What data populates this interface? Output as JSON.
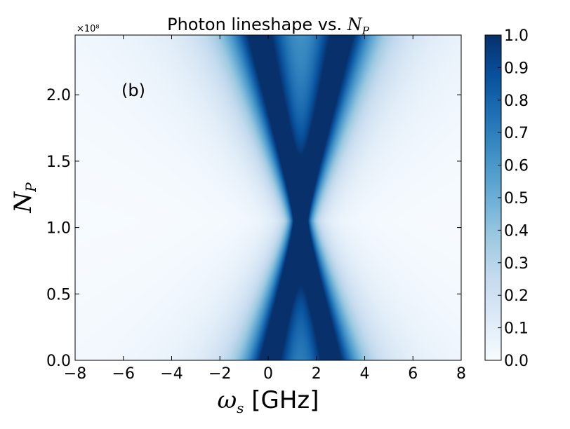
{
  "chart_data": {
    "type": "heatmap",
    "title": "Photon lineshape vs. N_P",
    "title_parts": {
      "prefix": "Photon lineshape vs. ",
      "math_main": "N",
      "math_sub": "P"
    },
    "xlabel": "ω_s [GHz]",
    "xlabel_parts": {
      "math_main": "ω",
      "math_sub": "s",
      "suffix": " [GHz]"
    },
    "ylabel": "N_P",
    "ylabel_parts": {
      "math_main": "N",
      "math_sub": "P"
    },
    "xlim": [
      -8,
      8
    ],
    "ylim": [
      0,
      2.45
    ],
    "x_ticks": [
      -8,
      -6,
      -4,
      -2,
      0,
      2,
      4,
      6,
      8
    ],
    "x_tick_labels": [
      "−8",
      "−6",
      "−4",
      "−2",
      "0",
      "2",
      "4",
      "6",
      "8"
    ],
    "y_ticks": [
      0.0,
      0.5,
      1.0,
      1.5,
      2.0
    ],
    "y_tick_labels": [
      "0.0",
      "0.5",
      "1.0",
      "1.5",
      "2.0"
    ],
    "y_multiplier": "×10⁸",
    "annotation": "(b)",
    "colormap": "Blues",
    "colormap_stops": [
      "#f7fbff",
      "#deebf7",
      "#c6dbef",
      "#9ecae1",
      "#6baed6",
      "#4292c6",
      "#2171b5",
      "#08519c",
      "#08306b"
    ],
    "colorbar": {
      "range": [
        0.0,
        1.0
      ],
      "ticks": [
        0.0,
        0.1,
        0.2,
        0.3,
        0.4,
        0.5,
        0.6,
        0.7,
        0.8,
        0.9,
        1.0
      ],
      "tick_labels": [
        "0.0",
        "0.1",
        "0.2",
        "0.3",
        "0.4",
        "0.5",
        "0.6",
        "0.7",
        "0.8",
        "0.9",
        "1.0"
      ]
    },
    "lineshape_model": {
      "center_ghz": 1.35,
      "min_half_splitting_ghz": 0.05,
      "splitting_slope_ghz_per_unit_np": 1.25,
      "np_at_min_splitting": 1.05,
      "base_linewidth_ghz": 0.28,
      "linewidth_growth_ghz_per_unit_np": 0.62
    }
  }
}
